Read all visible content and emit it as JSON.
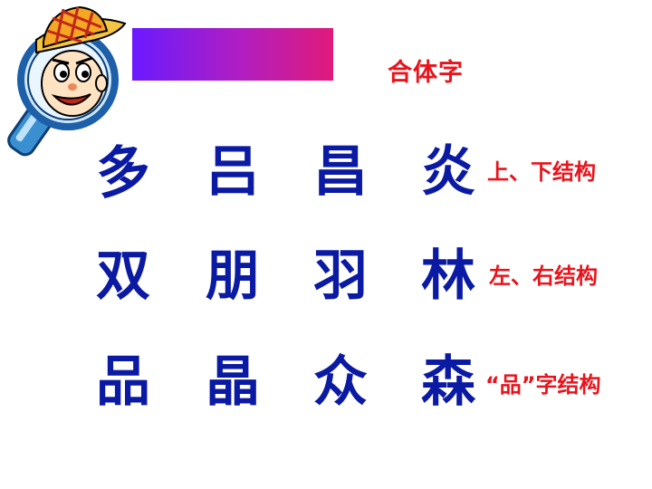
{
  "mascot": {
    "icon": "magnifier-mascot-icon"
  },
  "banner": {
    "color_start": "#6a1aff",
    "color_end": "#e01a7a"
  },
  "title": "合体字",
  "rows": [
    {
      "chars": [
        "多",
        "吕",
        "昌",
        "炎"
      ],
      "label": "上、下结构"
    },
    {
      "chars": [
        "双",
        "朋",
        "羽",
        "林"
      ],
      "label": "左、右结构"
    },
    {
      "chars": [
        "品",
        "晶",
        "众",
        "森"
      ],
      "label": "“品”字结构"
    }
  ],
  "colors": {
    "chars": "#0b1aa3",
    "labels": "#e8141c"
  }
}
